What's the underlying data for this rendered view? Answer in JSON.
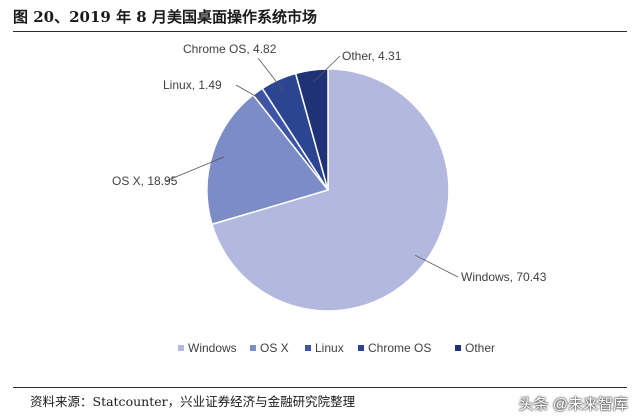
{
  "header": {
    "title": "图 20、2019 年 8 月美国桌面操作系统市场"
  },
  "chart_data": {
    "type": "pie",
    "title": "图 20、2019 年 8 月美国桌面操作系统市场",
    "categories": [
      "Windows",
      "OS X",
      "Linux",
      "Chrome OS",
      "Other"
    ],
    "values": [
      70.43,
      18.95,
      1.49,
      4.82,
      4.31
    ],
    "labels": [
      "Windows, 70.43",
      "OS X, 18.95",
      "Linux, 1.49",
      "Chrome OS, 4.82",
      "Other, 4.31"
    ],
    "legend": [
      "Windows",
      "OS X",
      "Linux",
      "Chrome OS",
      "Other"
    ],
    "legend_position": "bottom",
    "colors": [
      "#b3b9de",
      "#7b8cc6",
      "#3d55a8",
      "#2b4593",
      "#1f3275"
    ]
  },
  "footer": {
    "source": "资料来源：Statcounter，兴业证券经济与金融研究院整理",
    "watermark": "头条 @未来智库"
  }
}
